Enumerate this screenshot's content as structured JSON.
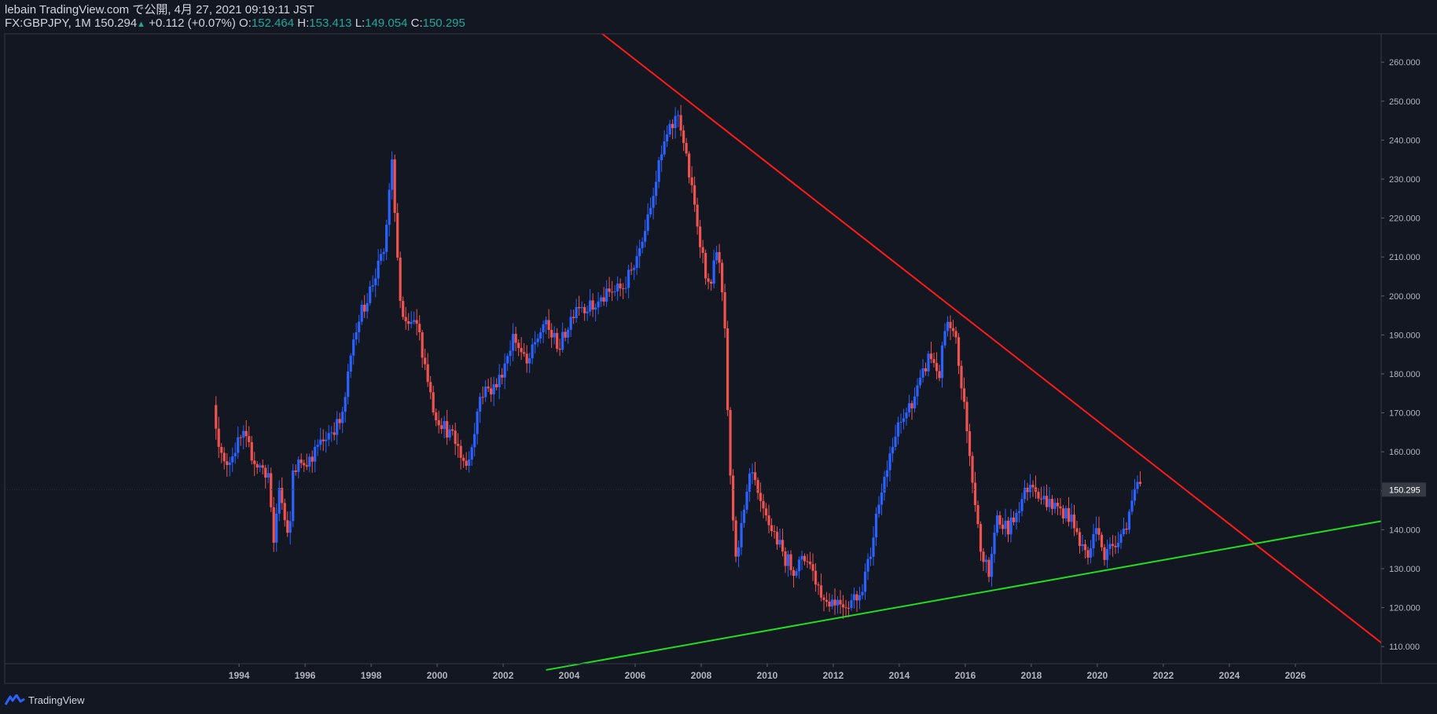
{
  "header": {
    "line1": "lebain TradingView.com で公開, 4月 27, 2021 09:19:11 JST",
    "symbol": "FX:GBPJPY, 1M",
    "last": "150.294",
    "change": "+0.112 (+0.07%)",
    "o_label": "O:",
    "o_value": "152.464",
    "h_label": "H:",
    "h_value": "153.413",
    "l_label": "L:",
    "l_value": "149.054",
    "c_label": "C:",
    "c_value": "150.295"
  },
  "footer": {
    "brand": "TradingView",
    "logo_icon": "tradingview-logo-icon"
  },
  "chart_data": {
    "type": "candlestick",
    "title": "FX:GBPJPY, 1M",
    "xlabel": "",
    "ylabel": "",
    "xlim": [
      1986.9,
      2028.6
    ],
    "ylim": [
      105.6,
      267.3
    ],
    "x_ticks": [
      "1994",
      "1996",
      "1998",
      "2000",
      "2002",
      "2004",
      "2006",
      "2008",
      "2010",
      "2012",
      "2014",
      "2016",
      "2018",
      "2020",
      "2022",
      "2024",
      "2026"
    ],
    "y_ticks": [
      "110.000",
      "120.000",
      "130.000",
      "140.000",
      "150.000",
      "160.000",
      "170.000",
      "180.000",
      "190.000",
      "200.000",
      "210.000",
      "220.000",
      "230.000",
      "240.000",
      "250.000",
      "260.000"
    ],
    "last_price_label": "150.295",
    "last_price": 150.295,
    "colors": {
      "up": "#2962ff",
      "down": "#ef5350",
      "background": "#131722",
      "resistance": "#ff1a1a",
      "support": "#22dd22",
      "text": "#b2b5be"
    },
    "grid": false,
    "anchors": [
      [
        1993.3,
        172
      ],
      [
        1993.6,
        156
      ],
      [
        1993.9,
        160
      ],
      [
        1994.2,
        164
      ],
      [
        1994.6,
        157
      ],
      [
        1995.0,
        154
      ],
      [
        1995.3,
        151
      ],
      [
        1995.7,
        155
      ],
      [
        1996.0,
        158
      ],
      [
        1995.1,
        134
      ],
      [
        1995.6,
        135
      ],
      [
        1996.2,
        158
      ],
      [
        1996.8,
        165
      ],
      [
        1997.2,
        168
      ],
      [
        1997.6,
        192
      ],
      [
        1997.9,
        198
      ],
      [
        1998.2,
        205
      ],
      [
        1998.5,
        212
      ],
      [
        1998.7,
        236
      ],
      [
        1999.0,
        193
      ],
      [
        1999.5,
        192
      ],
      [
        2000.0,
        170
      ],
      [
        2000.6,
        163
      ],
      [
        2001.0,
        156
      ],
      [
        2001.4,
        175
      ],
      [
        2001.9,
        177
      ],
      [
        2002.4,
        190
      ],
      [
        2002.8,
        182
      ],
      [
        2003.3,
        193
      ],
      [
        2003.8,
        187
      ],
      [
        2004.3,
        198
      ],
      [
        2004.8,
        197
      ],
      [
        2005.2,
        200
      ],
      [
        2005.8,
        203
      ],
      [
        2006.2,
        212
      ],
      [
        2006.6,
        226
      ],
      [
        2007.0,
        240
      ],
      [
        2007.4,
        247
      ],
      [
        2007.9,
        222
      ],
      [
        2008.3,
        202
      ],
      [
        2008.6,
        212
      ],
      [
        2008.8,
        190
      ],
      [
        2008.9,
        165
      ],
      [
        2009.1,
        133
      ],
      [
        2009.3,
        140
      ],
      [
        2009.6,
        155
      ],
      [
        2009.9,
        145
      ],
      [
        2010.3,
        139
      ],
      [
        2010.6,
        133
      ],
      [
        2010.9,
        130
      ],
      [
        2011.3,
        133
      ],
      [
        2011.6,
        126
      ],
      [
        2011.8,
        122
      ],
      [
        2012.1,
        122
      ],
      [
        2012.5,
        121
      ],
      [
        2012.9,
        124
      ],
      [
        2013.2,
        133
      ],
      [
        2013.5,
        150
      ],
      [
        2013.8,
        158
      ],
      [
        2014.0,
        165
      ],
      [
        2014.4,
        172
      ],
      [
        2014.7,
        177
      ],
      [
        2015.0,
        185
      ],
      [
        2015.3,
        180
      ],
      [
        2015.5,
        193
      ],
      [
        2015.8,
        188
      ],
      [
        2016.0,
        175
      ],
      [
        2016.2,
        160
      ],
      [
        2016.5,
        138
      ],
      [
        2016.8,
        128
      ],
      [
        2017.0,
        142
      ],
      [
        2017.4,
        140
      ],
      [
        2017.8,
        148
      ],
      [
        2018.1,
        153
      ],
      [
        2018.4,
        148
      ],
      [
        2018.8,
        146
      ],
      [
        2019.2,
        144
      ],
      [
        2019.5,
        138
      ],
      [
        2019.8,
        133
      ],
      [
        2020.1,
        142
      ],
      [
        2020.3,
        133
      ],
      [
        2020.6,
        137
      ],
      [
        2020.9,
        140
      ],
      [
        2021.1,
        146
      ],
      [
        2021.3,
        151
      ]
    ],
    "trendlines": [
      {
        "name": "resistance",
        "color": "#ff1a1a",
        "points": [
          [
            2005.0,
            267.3
          ],
          [
            2028.6,
            111.0
          ]
        ]
      },
      {
        "name": "support",
        "color": "#22dd22",
        "points": [
          [
            2003.3,
            104.0
          ],
          [
            2028.6,
            142.2
          ]
        ]
      }
    ]
  }
}
